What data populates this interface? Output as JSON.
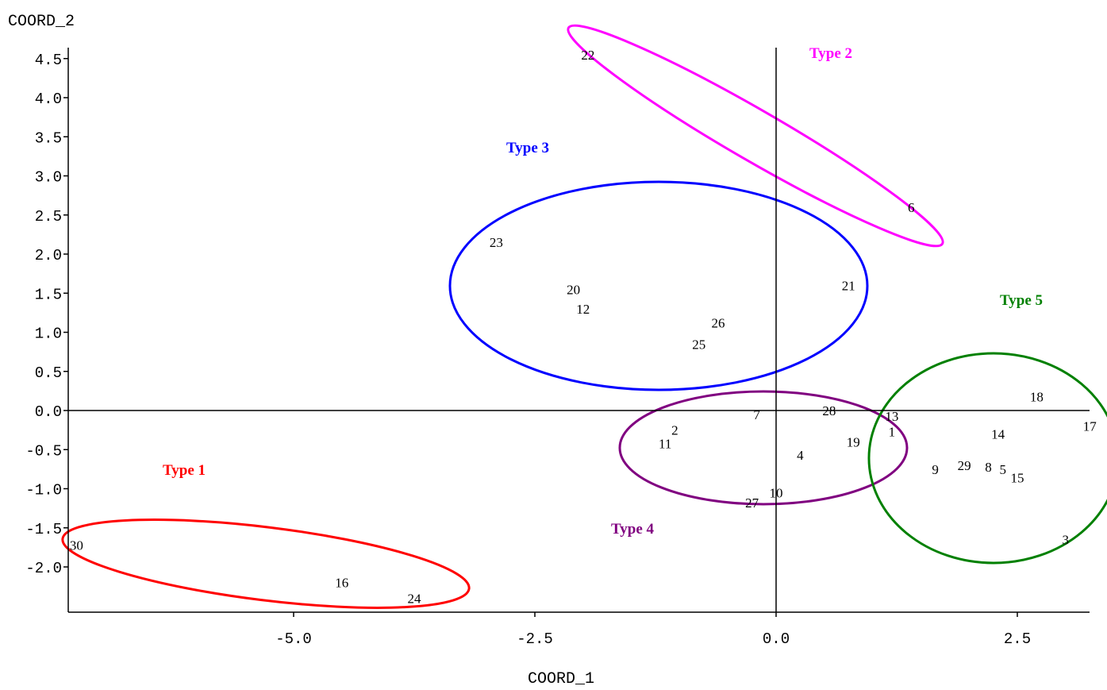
{
  "chart_data": {
    "type": "scatter",
    "xlabel": "COORD_1",
    "ylabel": "COORD_2",
    "xlim": [
      -7.4,
      3.25
    ],
    "ylim": [
      -2.6,
      4.6
    ],
    "x_ticks": [
      {
        "v": -5.0,
        "label": "-5.0"
      },
      {
        "v": -2.5,
        "label": "-2.5"
      },
      {
        "v": 0.0,
        "label": "0.0"
      },
      {
        "v": 2.5,
        "label": "2.5"
      }
    ],
    "y_ticks": [
      {
        "v": 4.5,
        "label": "4.5"
      },
      {
        "v": 4.0,
        "label": "4.0"
      },
      {
        "v": 3.5,
        "label": "3.5"
      },
      {
        "v": 3.0,
        "label": "3.0"
      },
      {
        "v": 2.5,
        "label": "2.5"
      },
      {
        "v": 2.0,
        "label": "2.0"
      },
      {
        "v": 1.5,
        "label": "1.5"
      },
      {
        "v": 1.0,
        "label": "1.0"
      },
      {
        "v": 0.5,
        "label": "0.5"
      },
      {
        "v": 0.0,
        "label": "0.0"
      },
      {
        "v": -0.5,
        "label": "-0.5"
      },
      {
        "v": -1.0,
        "label": "-1.0"
      },
      {
        "v": -1.5,
        "label": "-1.5"
      },
      {
        "v": -2.0,
        "label": "-2.0"
      }
    ],
    "points": [
      {
        "label": "1",
        "x": 1.2,
        "y": -0.27
      },
      {
        "label": "2",
        "x": -1.05,
        "y": -0.25
      },
      {
        "label": "3",
        "x": 3.0,
        "y": -1.65
      },
      {
        "label": "4",
        "x": 0.25,
        "y": -0.57
      },
      {
        "label": "5",
        "x": 2.35,
        "y": -0.75
      },
      {
        "label": "6",
        "x": 1.4,
        "y": 2.6
      },
      {
        "label": "7",
        "x": -0.2,
        "y": -0.05
      },
      {
        "label": "8",
        "x": 2.2,
        "y": -0.72
      },
      {
        "label": "9",
        "x": 1.65,
        "y": -0.75
      },
      {
        "label": "10",
        "x": 0.0,
        "y": -1.05
      },
      {
        "label": "11",
        "x": -1.15,
        "y": -0.42
      },
      {
        "label": "12",
        "x": -2.0,
        "y": 1.3
      },
      {
        "label": "13",
        "x": 1.2,
        "y": -0.07
      },
      {
        "label": "14",
        "x": 2.3,
        "y": -0.3
      },
      {
        "label": "15",
        "x": 2.5,
        "y": -0.86
      },
      {
        "label": "16",
        "x": -4.5,
        "y": -2.2
      },
      {
        "label": "17",
        "x": 3.25,
        "y": -0.2
      },
      {
        "label": "18",
        "x": 2.7,
        "y": 0.18
      },
      {
        "label": "19",
        "x": 0.8,
        "y": -0.4
      },
      {
        "label": "20",
        "x": -2.1,
        "y": 1.55
      },
      {
        "label": "21",
        "x": 0.75,
        "y": 1.6
      },
      {
        "label": "22",
        "x": -1.95,
        "y": 4.55
      },
      {
        "label": "23",
        "x": -2.9,
        "y": 2.15
      },
      {
        "label": "24",
        "x": -3.75,
        "y": -2.4
      },
      {
        "label": "25",
        "x": -0.8,
        "y": 0.85
      },
      {
        "label": "26",
        "x": -0.6,
        "y": 1.12
      },
      {
        "label": "27",
        "x": -0.25,
        "y": -1.18
      },
      {
        "label": "28",
        "x": 0.55,
        "y": 0.0
      },
      {
        "label": "29",
        "x": 1.95,
        "y": -0.7
      },
      {
        "label": "30",
        "x": -7.25,
        "y": -1.72
      }
    ],
    "groups": [
      {
        "name": "Type 1",
        "color": "#ff0000"
      },
      {
        "name": "Type 2",
        "color": "#ff00ff"
      },
      {
        "name": "Type 3",
        "color": "#0000ff"
      },
      {
        "name": "Type 4",
        "color": "#800080"
      },
      {
        "name": "Type 5",
        "color": "#008000"
      }
    ]
  }
}
